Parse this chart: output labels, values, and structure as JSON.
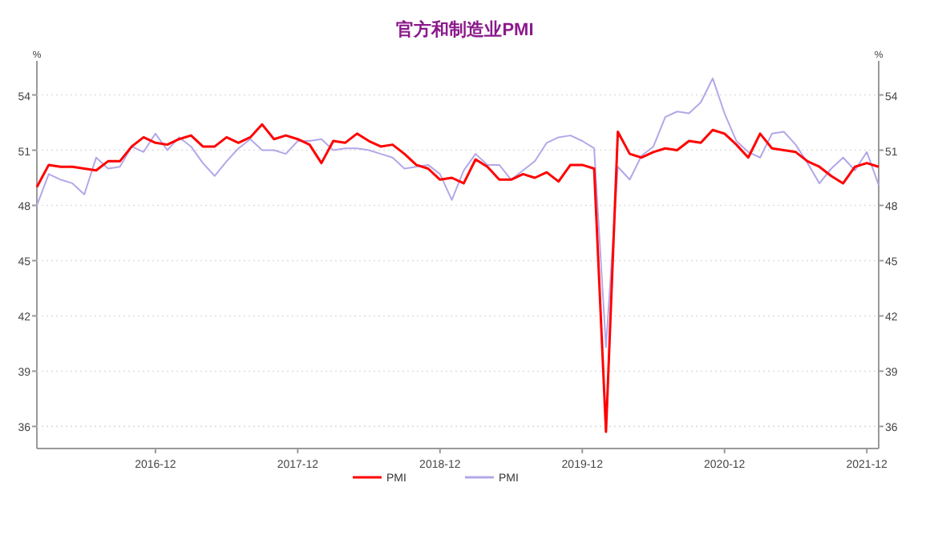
{
  "chart_data": {
    "type": "line",
    "title": "官方和制造业PMI",
    "ylabel": "%",
    "y2label": "%",
    "xlim": [
      "2016-02",
      "2022-01"
    ],
    "xticks": [
      "2016-12",
      "2017-12",
      "2018-12",
      "2019-12",
      "2020-12",
      "2021-12"
    ],
    "ylim": [
      34.8,
      55.85
    ],
    "yticks": [
      36,
      39,
      42,
      45,
      48,
      51,
      54
    ],
    "y2lim": [
      34.8,
      55.85
    ],
    "y2ticks": [
      36,
      39,
      42,
      45,
      48,
      51,
      54
    ],
    "grid": "y",
    "legend": "bottom",
    "marker": "none",
    "line_style": "solid",
    "x": [
      "2016-02",
      "2016-03",
      "2016-04",
      "2016-05",
      "2016-06",
      "2016-07",
      "2016-08",
      "2016-09",
      "2016-10",
      "2016-11",
      "2016-12",
      "2017-01",
      "2017-02",
      "2017-03",
      "2017-04",
      "2017-05",
      "2017-06",
      "2017-07",
      "2017-08",
      "2017-09",
      "2017-10",
      "2017-11",
      "2017-12",
      "2018-01",
      "2018-02",
      "2018-03",
      "2018-04",
      "2018-05",
      "2018-06",
      "2018-07",
      "2018-08",
      "2018-09",
      "2018-10",
      "2018-11",
      "2018-12",
      "2019-01",
      "2019-02",
      "2019-03",
      "2019-04",
      "2019-05",
      "2019-06",
      "2019-07",
      "2019-08",
      "2019-09",
      "2019-10",
      "2019-11",
      "2019-12",
      "2020-01",
      "2020-02",
      "2020-03",
      "2020-04",
      "2020-05",
      "2020-06",
      "2020-07",
      "2020-08",
      "2020-09",
      "2020-10",
      "2020-11",
      "2020-12",
      "2021-01",
      "2021-02",
      "2021-03",
      "2021-04",
      "2021-05",
      "2021-06",
      "2021-07",
      "2021-08",
      "2021-09",
      "2021-10",
      "2021-11",
      "2021-12",
      "2022-01"
    ],
    "series": [
      {
        "name": "PMI",
        "color": "#ff0000",
        "values": [
          49.0,
          50.2,
          50.1,
          50.1,
          50.0,
          49.9,
          50.4,
          50.4,
          51.2,
          51.7,
          51.4,
          51.3,
          51.6,
          51.8,
          51.2,
          51.2,
          51.7,
          51.4,
          51.7,
          52.4,
          51.6,
          51.8,
          51.6,
          51.3,
          50.3,
          51.5,
          51.4,
          51.9,
          51.5,
          51.2,
          51.3,
          50.8,
          50.2,
          50.0,
          49.4,
          49.5,
          49.2,
          50.5,
          50.1,
          49.4,
          49.4,
          49.7,
          49.5,
          49.8,
          49.3,
          50.2,
          50.2,
          50.0,
          35.7,
          52.0,
          50.8,
          50.6,
          50.9,
          51.1,
          51.0,
          51.5,
          51.4,
          52.1,
          51.9,
          51.3,
          50.6,
          51.9,
          51.1,
          51.0,
          50.9,
          50.4,
          50.1,
          49.6,
          49.2,
          50.1,
          50.3,
          50.1
        ]
      },
      {
        "name": "PMI",
        "color": "#b4a7e8",
        "values": [
          48.0,
          49.7,
          49.4,
          49.2,
          48.6,
          50.6,
          50.0,
          50.1,
          51.2,
          50.9,
          51.9,
          51.0,
          51.7,
          51.2,
          50.3,
          49.6,
          50.4,
          51.1,
          51.6,
          51.0,
          51.0,
          50.8,
          51.5,
          51.5,
          51.6,
          51.0,
          51.1,
          51.1,
          51.0,
          50.8,
          50.6,
          50.0,
          50.1,
          50.2,
          49.7,
          48.3,
          49.9,
          50.8,
          50.2,
          50.2,
          49.4,
          49.9,
          50.4,
          51.4,
          51.7,
          51.8,
          51.5,
          51.1,
          40.3,
          50.1,
          49.4,
          50.7,
          51.2,
          52.8,
          53.1,
          53.0,
          53.6,
          54.9,
          53.0,
          51.5,
          50.9,
          50.6,
          51.9,
          52.0,
          51.3,
          50.3,
          49.2,
          50.0,
          50.6,
          49.9,
          50.9,
          49.1
        ]
      }
    ]
  }
}
